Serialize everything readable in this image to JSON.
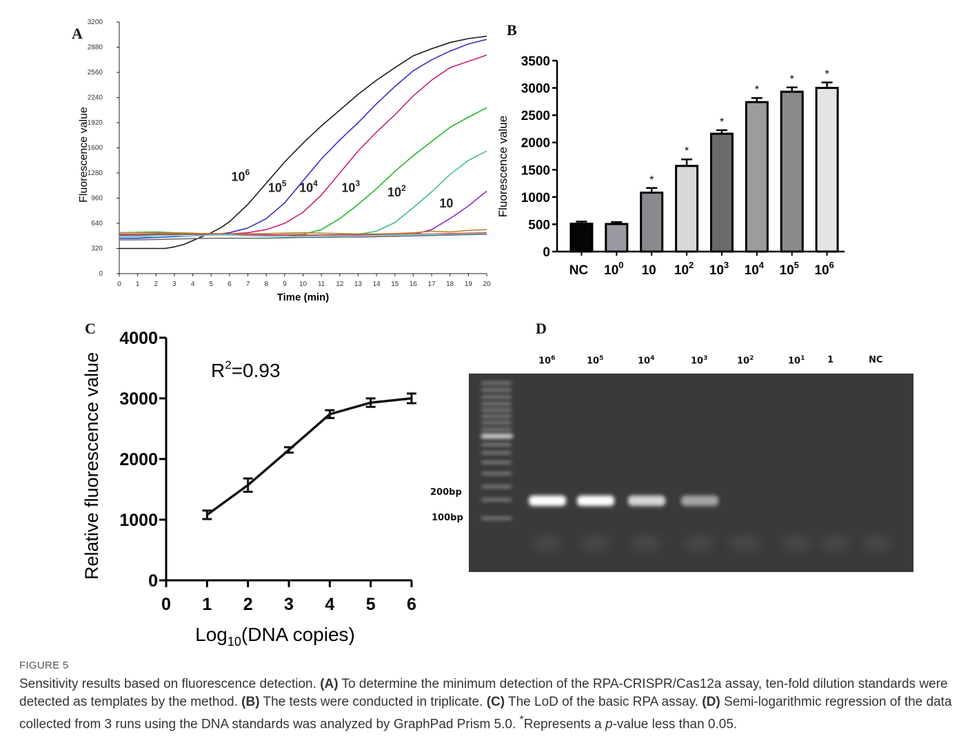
{
  "figure_label": "FIGURE 5",
  "caption": {
    "part1": "Sensitivity results based on fluorescence detection. ",
    "a_tag": "(A)",
    "a_text": " To determine the minimum detection of the RPA-CRISPR/Cas12a assay, ten-fold dilution standards were detected as templates by the method. ",
    "b_tag": "(B)",
    "b_text": " The tests were conducted in triplicate. ",
    "c_tag": "(C)",
    "c_text": " The LoD of the basic RPA assay. ",
    "d_tag": "(D)",
    "d_text": " Semi-logarithmic regression of the data collected from 3 runs using the DNA standards was analyzed by GraphPad Prism 5.0. ",
    "star": "*",
    "star_text": "Represents a ",
    "p": "p",
    "end": "-value less than 0.05."
  },
  "panels": {
    "a": "A",
    "b": "B",
    "c": "C",
    "d": "D"
  },
  "chart_data": [
    {
      "type": "line",
      "panel": "A",
      "xlabel": "Time (min)",
      "ylabel": "Fluorescence value",
      "xlim": [
        0,
        20
      ],
      "ylim": [
        0,
        3200
      ],
      "xticks": [
        "0",
        "1",
        "2",
        "3",
        "4",
        "5",
        "6",
        "7",
        "8",
        "9",
        "10",
        "11",
        "12",
        "13",
        "14",
        "15",
        "16",
        "17",
        "18",
        "19",
        "20"
      ],
      "yticks": [
        "0",
        "320",
        "640",
        "960",
        "1280",
        "1600",
        "1920",
        "2240",
        "2560",
        "2880",
        "3200"
      ],
      "series": [
        {
          "name": "10^6",
          "color": "#1a1a1a",
          "x": [
            0,
            1,
            2,
            2.5,
            3,
            3.5,
            4,
            4.5,
            5,
            5.5,
            6,
            7,
            8,
            9,
            10,
            11,
            12,
            13,
            14,
            15,
            16,
            17,
            18,
            19,
            20
          ],
          "y": [
            320,
            320,
            320,
            320,
            340,
            370,
            420,
            470,
            520,
            580,
            660,
            880,
            1150,
            1420,
            1660,
            1880,
            2080,
            2280,
            2460,
            2620,
            2770,
            2860,
            2940,
            2990,
            3020
          ]
        },
        {
          "name": "10^5",
          "color": "#2f2fc4",
          "x": [
            0,
            1,
            2,
            3,
            4,
            5,
            6,
            7,
            8,
            9,
            10,
            11,
            12,
            13,
            14,
            15,
            16,
            17,
            18,
            19,
            20
          ],
          "y": [
            450,
            450,
            460,
            470,
            480,
            490,
            520,
            580,
            700,
            900,
            1180,
            1460,
            1700,
            1920,
            2160,
            2380,
            2580,
            2720,
            2830,
            2920,
            2980
          ]
        },
        {
          "name": "10^4",
          "color": "#c4217a",
          "x": [
            0,
            1,
            2,
            3,
            4,
            5,
            6,
            7,
            8,
            9,
            10,
            11,
            12,
            13,
            14,
            15,
            16,
            17,
            18,
            19,
            20
          ],
          "y": [
            490,
            490,
            495,
            495,
            500,
            500,
            505,
            520,
            560,
            640,
            780,
            1000,
            1280,
            1560,
            1800,
            2020,
            2260,
            2460,
            2620,
            2700,
            2780
          ]
        },
        {
          "name": "10^3",
          "color": "#22b822",
          "x": [
            0,
            1,
            2,
            3,
            4,
            5,
            6,
            7,
            8,
            9,
            10,
            11,
            12,
            13,
            14,
            15,
            16,
            17,
            18,
            19,
            20
          ],
          "y": [
            520,
            525,
            530,
            520,
            515,
            505,
            500,
            500,
            490,
            495,
            500,
            560,
            700,
            880,
            1080,
            1300,
            1500,
            1680,
            1860,
            1990,
            2110
          ]
        },
        {
          "name": "10^2",
          "color": "#3cbf8c",
          "x": [
            0,
            1,
            2,
            3,
            4,
            5,
            6,
            7,
            8,
            9,
            10,
            11,
            12,
            13,
            14,
            15,
            16,
            17,
            18,
            19,
            20
          ],
          "y": [
            480,
            480,
            490,
            495,
            500,
            505,
            500,
            500,
            490,
            490,
            490,
            490,
            490,
            500,
            540,
            650,
            840,
            1040,
            1260,
            1440,
            1560
          ]
        },
        {
          "name": "10",
          "color": "#8a2ad0",
          "x": [
            0,
            1,
            2,
            3,
            4,
            5,
            6,
            7,
            8,
            9,
            10,
            11,
            12,
            13,
            14,
            15,
            16,
            17,
            18,
            19,
            20
          ],
          "y": [
            500,
            500,
            505,
            505,
            500,
            500,
            495,
            495,
            490,
            490,
            480,
            480,
            480,
            485,
            490,
            490,
            500,
            560,
            700,
            860,
            1050
          ]
        },
        {
          "name": "",
          "color": "#b8862b",
          "x": [
            0,
            1,
            2,
            3,
            4,
            5,
            6,
            7,
            8,
            9,
            10,
            11,
            12,
            13,
            14,
            15,
            16,
            17,
            18,
            19,
            20
          ],
          "y": [
            520,
            520,
            520,
            515,
            510,
            510,
            505,
            505,
            510,
            515,
            520,
            515,
            510,
            505,
            505,
            510,
            520,
            540,
            530,
            550,
            560
          ]
        },
        {
          "name": "",
          "color": "#e23a3a",
          "x": [
            0,
            1,
            2,
            3,
            4,
            5,
            6,
            7,
            8,
            9,
            10,
            11,
            12,
            13,
            14,
            15,
            16,
            17,
            18,
            19,
            20
          ],
          "y": [
            500,
            500,
            500,
            500,
            500,
            500,
            495,
            495,
            495,
            490,
            490,
            490,
            495,
            495,
            495,
            500,
            505,
            505,
            510,
            515,
            520
          ]
        },
        {
          "name": "",
          "color": "#6fd0e8",
          "x": [
            0,
            1,
            2,
            3,
            4,
            5,
            6,
            7,
            8,
            9,
            10,
            11,
            12,
            13,
            14,
            15,
            16,
            17,
            18,
            19,
            20
          ],
          "y": [
            470,
            470,
            470,
            480,
            480,
            490,
            490,
            480,
            475,
            470,
            475,
            480,
            480,
            480,
            485,
            490,
            495,
            500,
            500,
            505,
            510
          ]
        },
        {
          "name": "",
          "color": "#6e6e6e",
          "x": [
            0,
            1,
            2,
            3,
            4,
            5,
            6,
            7,
            8,
            9,
            10,
            11,
            12,
            13,
            14,
            15,
            16,
            17,
            18,
            19,
            20
          ],
          "y": [
            430,
            430,
            435,
            440,
            445,
            450,
            450,
            450,
            450,
            455,
            460,
            460,
            465,
            465,
            470,
            475,
            480,
            485,
            490,
            495,
            500
          ]
        }
      ],
      "annotations": [
        {
          "base": "10",
          "exp": "6",
          "x": 6.6,
          "y": 1180
        },
        {
          "base": "10",
          "exp": "5",
          "x": 8.6,
          "y": 1040
        },
        {
          "base": "10",
          "exp": "4",
          "x": 10.3,
          "y": 1040
        },
        {
          "base": "10",
          "exp": "3",
          "x": 12.6,
          "y": 1040
        },
        {
          "base": "10",
          "exp": "2",
          "x": 15.1,
          "y": 980
        },
        {
          "base": "10",
          "exp": "",
          "x": 17.8,
          "y": 840
        }
      ]
    },
    {
      "type": "bar",
      "panel": "B",
      "ylabel": "Fluorescence value",
      "ylim": [
        0,
        3500
      ],
      "yticks": [
        "0",
        "500",
        "1000",
        "1500",
        "2000",
        "2500",
        "3000",
        "3500"
      ],
      "categories": [
        {
          "base": "NC",
          "exp": ""
        },
        {
          "base": "10",
          "exp": "0"
        },
        {
          "base": "10",
          "exp": ""
        },
        {
          "base": "10",
          "exp": "2"
        },
        {
          "base": "10",
          "exp": "3"
        },
        {
          "base": "10",
          "exp": "4"
        },
        {
          "base": "10",
          "exp": "5"
        },
        {
          "base": "10",
          "exp": "6"
        }
      ],
      "values": [
        510,
        505,
        1080,
        1570,
        2160,
        2740,
        2930,
        3000
      ],
      "errors": [
        40,
        35,
        85,
        120,
        65,
        75,
        80,
        100
      ],
      "significance": [
        "",
        "",
        "*",
        "*",
        "*",
        "*",
        "*",
        "*"
      ],
      "fill_colors": [
        "#050505",
        "#9a9aa2",
        "#8a8a8e",
        "#d8d8d8",
        "#6a6a6a",
        "#9c9c9c",
        "#8a8a8a",
        "#e4e4e4"
      ]
    },
    {
      "type": "line",
      "panel": "C",
      "xlabel_main": "Log",
      "xlabel_sub": "10",
      "xlabel_rest": "(DNA copies)",
      "ylabel": "Relative fluorescence value",
      "xlim": [
        0,
        6
      ],
      "ylim": [
        0,
        4000
      ],
      "xticks": [
        "0",
        "1",
        "2",
        "3",
        "4",
        "5",
        "6"
      ],
      "yticks": [
        "0",
        "1000",
        "2000",
        "3000",
        "4000"
      ],
      "annotation_main": "R",
      "annotation_sup": "2",
      "annotation_rest": "=0.93",
      "x": [
        1,
        2,
        3,
        4,
        5,
        6
      ],
      "y": [
        1080,
        1570,
        2150,
        2740,
        2930,
        3000
      ],
      "errors": [
        70,
        110,
        45,
        65,
        70,
        80
      ]
    }
  ],
  "gel": {
    "lane_labels": [
      {
        "base": "10",
        "exp": "6"
      },
      {
        "base": "10",
        "exp": "5"
      },
      {
        "base": "10",
        "exp": "4"
      },
      {
        "base": "10",
        "exp": "3"
      },
      {
        "base": "10",
        "exp": "2"
      },
      {
        "base": "10",
        "exp": "1"
      },
      {
        "base": "1",
        "exp": ""
      },
      {
        "base": "NC",
        "exp": ""
      }
    ],
    "marker_200": "200bp",
    "marker_100": "100bp",
    "band_intensity": [
      1.0,
      1.0,
      0.75,
      0.45,
      0,
      0,
      0,
      0
    ]
  }
}
